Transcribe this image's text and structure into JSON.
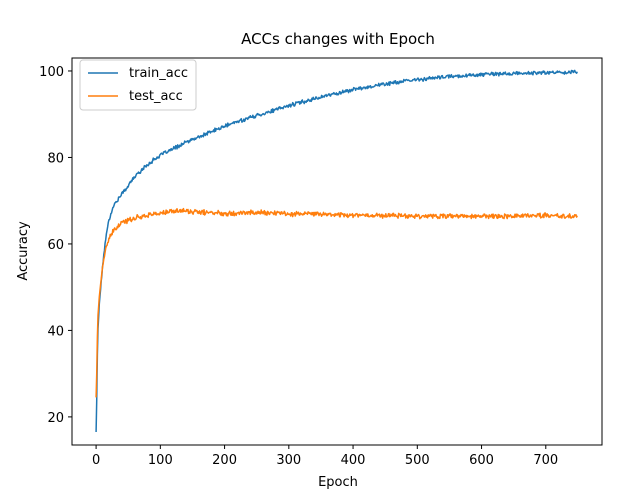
{
  "chart_data": {
    "type": "line",
    "title": "ACCs changes with Epoch",
    "xlabel": "Epoch",
    "ylabel": "Accuracy",
    "xlim": [
      -37.5,
      787.5
    ],
    "ylim": [
      13.5,
      103.0
    ],
    "xticks": [
      0,
      100,
      200,
      300,
      400,
      500,
      600,
      700
    ],
    "yticks": [
      20,
      40,
      60,
      80,
      100
    ],
    "grid": false,
    "legend_position": "top-left",
    "series": [
      {
        "name": "train_acc",
        "color": "#1f77b4",
        "points": [
          [
            0,
            16.5
          ],
          [
            1,
            24.0
          ],
          [
            2,
            34.5
          ],
          [
            3,
            40.5
          ],
          [
            5,
            46.0
          ],
          [
            8,
            51.5
          ],
          [
            12,
            57.5
          ],
          [
            16,
            62.5
          ],
          [
            20,
            65.5
          ],
          [
            25,
            68.0
          ],
          [
            30,
            69.5
          ],
          [
            40,
            71.5
          ],
          [
            50,
            73.5
          ],
          [
            60,
            75.5
          ],
          [
            70,
            77.0
          ],
          [
            80,
            78.3
          ],
          [
            90,
            79.5
          ],
          [
            100,
            80.5
          ],
          [
            120,
            82.0
          ],
          [
            140,
            83.5
          ],
          [
            160,
            84.7
          ],
          [
            180,
            86.0
          ],
          [
            200,
            87.2
          ],
          [
            220,
            88.3
          ],
          [
            250,
            89.7
          ],
          [
            280,
            91.0
          ],
          [
            300,
            92.0
          ],
          [
            330,
            93.2
          ],
          [
            350,
            94.0
          ],
          [
            380,
            95.0
          ],
          [
            400,
            95.7
          ],
          [
            430,
            96.5
          ],
          [
            450,
            97.0
          ],
          [
            480,
            97.6
          ],
          [
            500,
            98.0
          ],
          [
            550,
            98.7
          ],
          [
            600,
            99.2
          ],
          [
            650,
            99.4
          ],
          [
            700,
            99.6
          ],
          [
            749,
            99.8
          ]
        ],
        "noise": 0.35
      },
      {
        "name": "test_acc",
        "color": "#ff7f0e",
        "points": [
          [
            0,
            24.5
          ],
          [
            1,
            30.0
          ],
          [
            2,
            38.5
          ],
          [
            3,
            43.5
          ],
          [
            5,
            48.0
          ],
          [
            8,
            52.0
          ],
          [
            12,
            56.5
          ],
          [
            16,
            59.5
          ],
          [
            20,
            61.0
          ],
          [
            25,
            62.5
          ],
          [
            30,
            63.5
          ],
          [
            40,
            64.8
          ],
          [
            50,
            65.5
          ],
          [
            60,
            66.0
          ],
          [
            80,
            66.7
          ],
          [
            100,
            67.1
          ],
          [
            120,
            67.5
          ],
          [
            130,
            67.8
          ],
          [
            150,
            67.4
          ],
          [
            200,
            67.1
          ],
          [
            250,
            67.3
          ],
          [
            300,
            67.0
          ],
          [
            350,
            66.9
          ],
          [
            400,
            66.7
          ],
          [
            450,
            66.6
          ],
          [
            500,
            66.5
          ],
          [
            550,
            66.4
          ],
          [
            600,
            66.4
          ],
          [
            650,
            66.5
          ],
          [
            700,
            66.6
          ],
          [
            749,
            66.3
          ]
        ],
        "noise": 0.45
      }
    ]
  }
}
